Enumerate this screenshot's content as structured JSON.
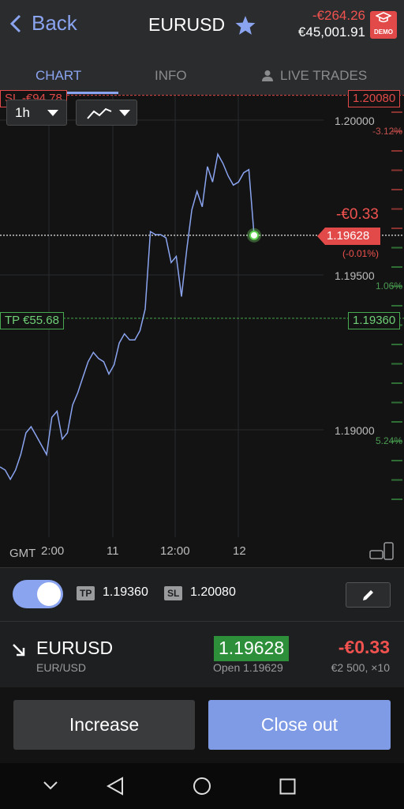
{
  "header": {
    "back_label": "Back",
    "symbol": "EURUSD",
    "pnl": "-€264.26",
    "balance": "€45,001.91",
    "demo_badge": "DEMO"
  },
  "tabs": [
    {
      "label": "CHART",
      "active": true
    },
    {
      "label": "INFO",
      "active": false
    },
    {
      "label": "LIVE TRADES",
      "active": false
    }
  ],
  "chart": {
    "timeframe": "1h",
    "sl_tag": "SL -€94.78",
    "sl_price": "1.20080",
    "tp_tag": "TP €55.68",
    "tp_price": "1.19360",
    "current_price": "1.19628",
    "current_pnl": "-€0.33",
    "current_pct": "(-0.01%)",
    "price_labels": [
      "1.20000",
      "1.19500",
      "1.19000"
    ],
    "pct_labels": [
      {
        "text": "-3.12%",
        "color": "#c0504d"
      },
      {
        "text": "1.06%",
        "color": "#4a9a52"
      },
      {
        "text": "5.24%",
        "color": "#4a9a52"
      }
    ],
    "x_labels": [
      "2:00",
      "11",
      "12:00",
      "12"
    ],
    "gmt_label": "GMT"
  },
  "chart_data": {
    "type": "line",
    "series": [
      {
        "values": [
          1.1888,
          1.1887,
          1.1884,
          1.1887,
          1.1892,
          1.1899,
          1.1901,
          1.1898,
          1.1895,
          1.1892,
          1.1904,
          1.1906,
          1.1897,
          1.1899,
          1.1908,
          1.1912,
          1.1917,
          1.1922,
          1.1925,
          1.1923,
          1.1922,
          1.1918,
          1.1921,
          1.1928,
          1.1931,
          1.1929,
          1.1929,
          1.1932,
          1.1939,
          1.1964,
          1.1963,
          1.1963,
          1.1962,
          1.1954,
          1.1956,
          1.1943,
          1.1958,
          1.1971,
          1.1977,
          1.1972,
          1.1985,
          1.198,
          1.1989,
          1.1986,
          1.1982,
          1.1979,
          1.198,
          1.1983,
          1.1984,
          1.19628
        ]
      }
    ],
    "ylim": [
      1.1875,
      1.2005
    ],
    "yticks": [
      1.2,
      1.195,
      1.19
    ],
    "xticks": [
      "2:00",
      "11",
      "12:00",
      "12"
    ],
    "lines": {
      "stop_loss": 1.2008,
      "take_profit": 1.1936,
      "current": 1.19628
    },
    "grid": true,
    "colors": {
      "line": "#8aa4f0",
      "sl": "#e14a48",
      "tp": "#46a84f"
    }
  },
  "trade_settings": {
    "tp_chip": "TP",
    "tp_value": "1.19360",
    "sl_chip": "SL",
    "sl_value": "1.20080",
    "enabled": true
  },
  "position": {
    "symbol": "EURUSD",
    "pair": "EUR/USD",
    "price": "1.19628",
    "open": "Open 1.19629",
    "pnl": "-€0.33",
    "size": "€2 500, ×10"
  },
  "actions": {
    "increase_label": "Increase",
    "close_label": "Close out"
  }
}
